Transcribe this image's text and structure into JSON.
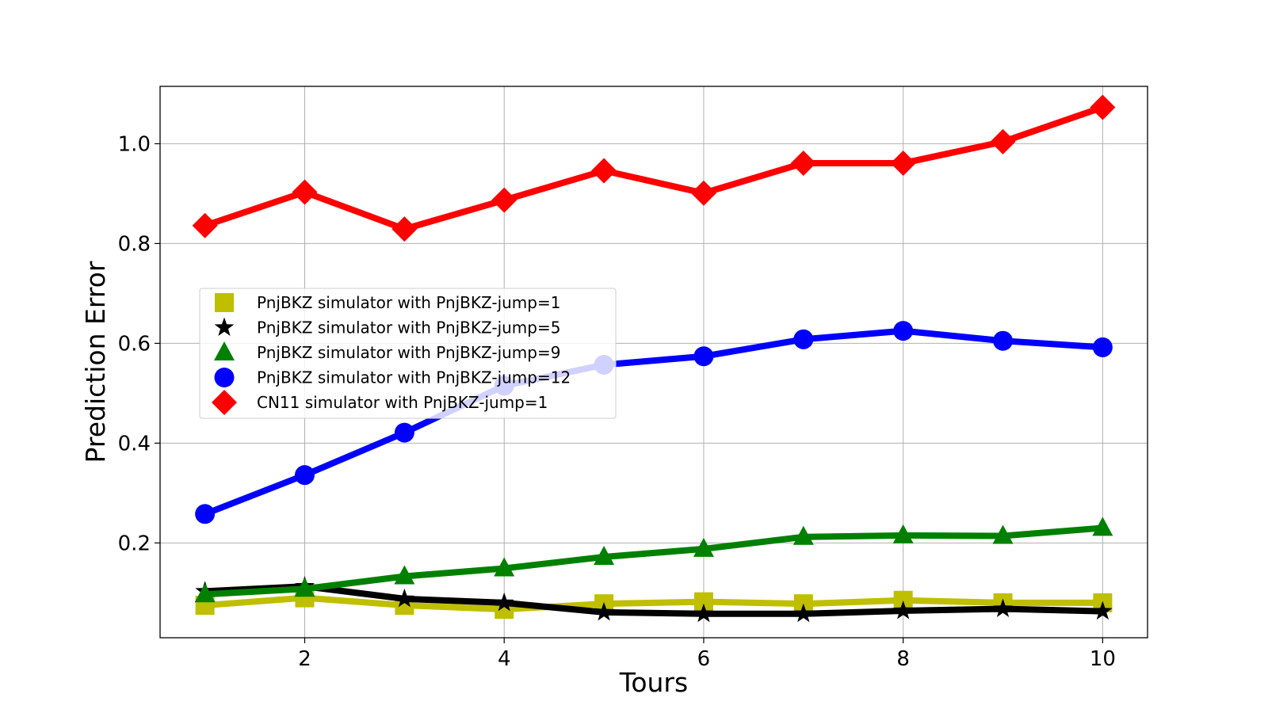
{
  "chart_data": {
    "type": "line",
    "xlabel": "Tours",
    "ylabel": "Prediction Error",
    "x": [
      1,
      2,
      3,
      4,
      5,
      6,
      7,
      8,
      9,
      10
    ],
    "xlim": [
      0.55,
      10.45
    ],
    "ylim": [
      0.01,
      1.115
    ],
    "xticks": [
      2,
      4,
      6,
      8,
      10
    ],
    "yticks": [
      0.2,
      0.4,
      0.6,
      0.8,
      1.0
    ],
    "xtick_labels": [
      "2",
      "4",
      "6",
      "8",
      "10"
    ],
    "ytick_labels": [
      "0.2",
      "0.4",
      "0.6",
      "0.8",
      "1.0"
    ],
    "grid": true,
    "legend_position": "center-left",
    "series": [
      {
        "name": "PnjBKZ simulator with PnjBKZ-jump=1",
        "color": "#bfbf00",
        "marker": "square",
        "values": [
          0.075,
          0.09,
          0.075,
          0.067,
          0.078,
          0.082,
          0.078,
          0.085,
          0.08,
          0.08
        ]
      },
      {
        "name": "PnjBKZ simulator with PnjBKZ-jump=5",
        "color": "#000000",
        "marker": "star",
        "values": [
          0.103,
          0.113,
          0.088,
          0.08,
          0.061,
          0.058,
          0.058,
          0.064,
          0.068,
          0.063
        ]
      },
      {
        "name": "PnjBKZ simulator with PnjBKZ-jump=9",
        "color": "#008000",
        "marker": "triangle",
        "values": [
          0.097,
          0.108,
          0.133,
          0.149,
          0.172,
          0.188,
          0.212,
          0.215,
          0.214,
          0.23
        ]
      },
      {
        "name": "PnjBKZ simulator with PnjBKZ-jump=12",
        "color": "#0000ff",
        "marker": "circle",
        "values": [
          0.258,
          0.336,
          0.421,
          0.515,
          0.557,
          0.574,
          0.608,
          0.625,
          0.605,
          0.592
        ]
      },
      {
        "name": "CN11 simulator with PnjBKZ-jump=1",
        "color": "#ff0000",
        "marker": "diamond",
        "values": [
          0.836,
          0.903,
          0.829,
          0.887,
          0.946,
          0.901,
          0.961,
          0.961,
          1.004,
          1.073
        ]
      }
    ]
  }
}
